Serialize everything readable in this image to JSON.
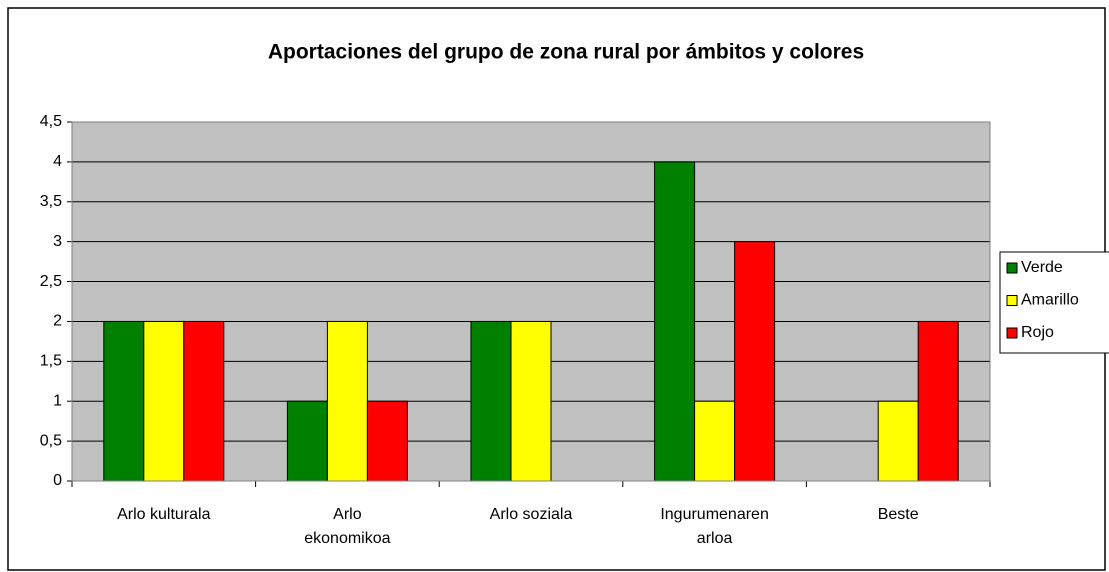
{
  "chart_data": {
    "type": "bar",
    "title": "Aportaciones del grupo de zona rural por ámbitos y colores",
    "categories": [
      "Arlo kulturala",
      "Arlo ekonomikoa",
      "Arlo soziala",
      "Ingurumenaren arloa",
      "Beste"
    ],
    "series": [
      {
        "name": "Verde",
        "color": "#008000",
        "values": [
          2,
          1,
          2,
          4,
          0
        ]
      },
      {
        "name": "Amarillo",
        "color": "#ffff00",
        "values": [
          2,
          2,
          2,
          1,
          1
        ]
      },
      {
        "name": "Rojo",
        "color": "#ff0000",
        "values": [
          2,
          1,
          0,
          3,
          2
        ]
      }
    ],
    "ylim": [
      0,
      4.5
    ],
    "yticks": [
      0,
      {
        "value": 0.5,
        "label": "0,5"
      },
      1,
      {
        "value": 1.5,
        "label": "1,5"
      },
      2,
      {
        "value": 2.5,
        "label": "2,5"
      },
      3,
      {
        "value": 3.5,
        "label": "3,5"
      },
      4,
      {
        "value": 4.5,
        "label": "4,5"
      }
    ],
    "grid": true,
    "legend": "right"
  }
}
